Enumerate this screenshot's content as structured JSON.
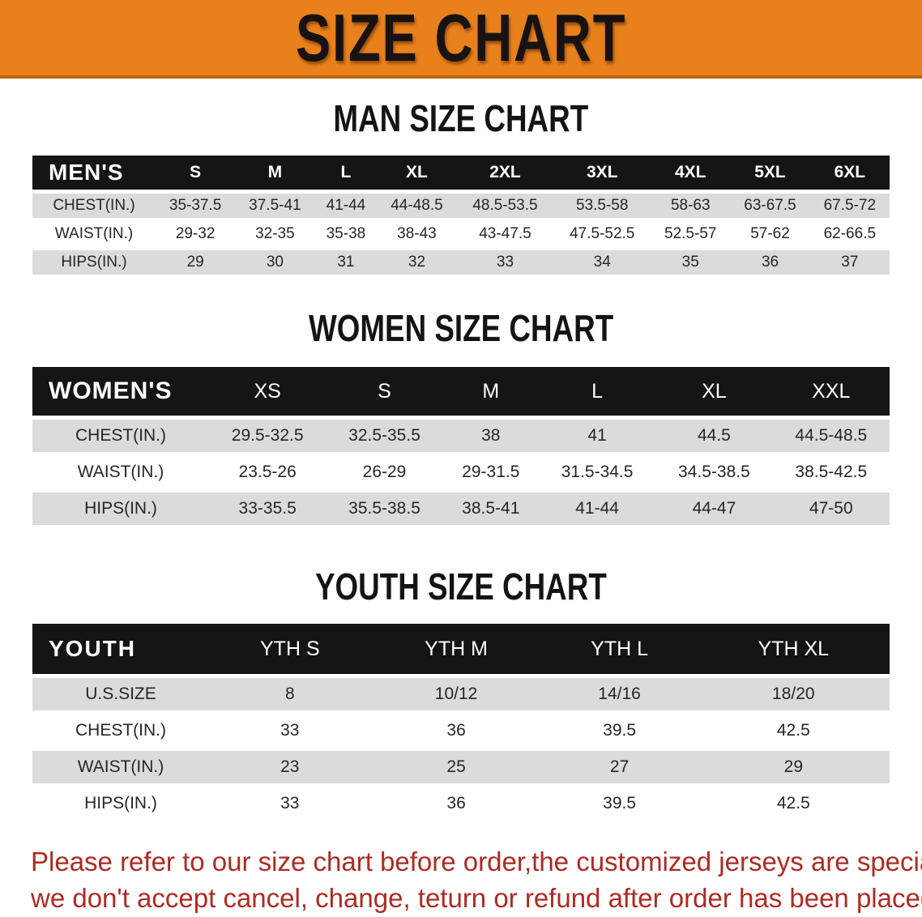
{
  "banner": {
    "title": "SIZE CHART",
    "bg_color": "#E8811C",
    "text_color": "#181312"
  },
  "sections": [
    {
      "heading": "MAN SIZE CHART",
      "table": {
        "header": [
          "MEN'S",
          "S",
          "M",
          "L",
          "XL",
          "2XL",
          "3XL",
          "4XL",
          "5XL",
          "6XL"
        ],
        "rows": [
          [
            "CHEST(IN.)",
            "35-37.5",
            "37.5-41",
            "41-44",
            "44-48.5",
            "48.5-53.5",
            "53.5-58",
            "58-63",
            "63-67.5",
            "67.5-72"
          ],
          [
            "WAIST(IN.)",
            "29-32",
            "32-35",
            "35-38",
            "38-43",
            "43-47.5",
            "47.5-52.5",
            "52.5-57",
            "57-62",
            "62-66.5"
          ],
          [
            "HIPS(IN.)",
            "29",
            "30",
            "31",
            "32",
            "33",
            "34",
            "35",
            "36",
            "37"
          ]
        ]
      }
    },
    {
      "heading": "WOMEN SIZE CHART",
      "table": {
        "header": [
          "WOMEN'S",
          "XS",
          "S",
          "M",
          "L",
          "XL",
          "XXL"
        ],
        "rows": [
          [
            "CHEST(IN.)",
            "29.5-32.5",
            "32.5-35.5",
            "38",
            "41",
            "44.5",
            "44.5-48.5"
          ],
          [
            "WAIST(IN.)",
            "23.5-26",
            "26-29",
            "29-31.5",
            "31.5-34.5",
            "34.5-38.5",
            "38.5-42.5"
          ],
          [
            "HIPS(IN.)",
            "33-35.5",
            "35.5-38.5",
            "38.5-41",
            "41-44",
            "44-47",
            "47-50"
          ]
        ]
      }
    },
    {
      "heading": "YOUTH SIZE CHART",
      "table": {
        "header": [
          "YOUTH",
          "YTH S",
          "YTH M",
          "YTH L",
          "YTH XL"
        ],
        "rows": [
          [
            "U.S.SIZE",
            "8",
            "10/12",
            "14/16",
            "18/20"
          ],
          [
            "CHEST(IN.)",
            "33",
            "36",
            "39.5",
            "42.5"
          ],
          [
            "WAIST(IN.)",
            "23",
            "25",
            "27",
            "29"
          ],
          [
            "HIPS(IN.)",
            "33",
            "36",
            "39.5",
            "42.5"
          ]
        ]
      }
    }
  ],
  "disclaimer": {
    "line1": "Please refer to our size chart before order,the customized jerseys are special products,",
    "line2": "we don't accept cancel, change, teturn or refund after order has been placed!",
    "color": "#AE2B22"
  },
  "colors": {
    "banner_orange": "#E8811C",
    "banner_border": "#BC6510",
    "table_header_black": "#151515",
    "row_stripe_gray": "#DBDBDB",
    "body_text": "#26262a",
    "disclaimer_red": "#AE2B22"
  }
}
